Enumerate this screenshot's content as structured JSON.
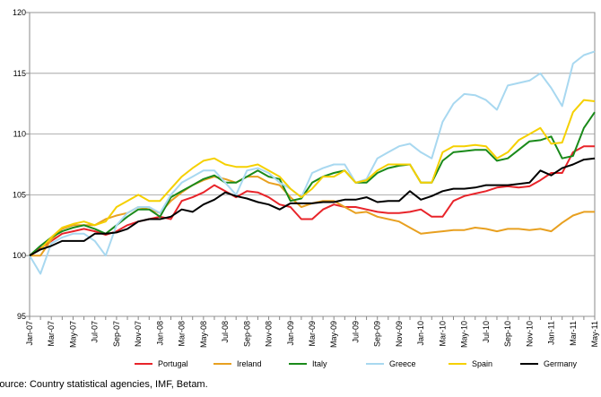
{
  "chart_data": {
    "type": "line",
    "categories": [
      "Jan-07",
      null,
      "Mar-07",
      null,
      "May-07",
      null,
      "Jul-07",
      null,
      "Sep-07",
      null,
      "Nov-07",
      null,
      "Jan-08",
      null,
      "Mar-08",
      null,
      "May-08",
      null,
      "Jul-08",
      null,
      "Sep-08",
      null,
      "Nov-08",
      null,
      "Jan-09",
      null,
      "Mar-09",
      null,
      "May-09",
      null,
      "Jul-09",
      null,
      "Sep-09",
      null,
      "Nov-09",
      null,
      "Jan-10",
      null,
      "Mar-10",
      null,
      "May-10",
      null,
      "Jul-10",
      null,
      "Sep-10",
      null,
      "Nov-10",
      null,
      "Jan-11",
      null,
      "Mar-11",
      null,
      "May-11"
    ],
    "series": [
      {
        "name": "Portugal",
        "color": "#e8242a",
        "values": [
          100,
          100.6,
          101.2,
          101.8,
          102,
          102.2,
          102,
          101.7,
          102,
          102.5,
          102.8,
          103,
          103.2,
          103,
          104.5,
          104.8,
          105.2,
          105.8,
          105.3,
          104.8,
          105.3,
          105.2,
          104.8,
          104.2,
          104,
          103,
          103,
          103.8,
          104.2,
          104,
          104,
          103.8,
          103.6,
          103.5,
          103.5,
          103.6,
          103.8,
          103.2,
          103.2,
          104.5,
          104.9,
          105.1,
          105.3,
          105.6,
          105.7,
          105.6,
          105.7,
          106.2,
          106.8,
          106.8,
          108.5,
          109,
          109
        ]
      },
      {
        "name": "Ireland",
        "color": "#e8a020",
        "values": [
          100,
          100,
          101.3,
          102.2,
          102.5,
          102.5,
          102.5,
          103,
          103.3,
          103.5,
          104,
          103.8,
          103.5,
          104.5,
          105.2,
          105.8,
          106.2,
          106.5,
          106.3,
          106,
          106.5,
          106.5,
          106,
          105.8,
          104.8,
          104,
          104.3,
          104.5,
          104.5,
          104,
          103.5,
          103.6,
          103.2,
          103,
          102.8,
          102.3,
          101.8,
          101.9,
          102,
          102.1,
          102.1,
          102.3,
          102.2,
          102,
          102.2,
          102.2,
          102.1,
          102.2,
          102,
          102.7,
          103.3,
          103.6,
          103.6
        ]
      },
      {
        "name": "Italy",
        "color": "#1a8a1a",
        "values": [
          100,
          100.8,
          101.5,
          102,
          102.3,
          102.5,
          102.2,
          101.8,
          102.5,
          103.2,
          103.8,
          103.8,
          103.2,
          104.8,
          105.3,
          105.8,
          106.3,
          106.6,
          106,
          106,
          106.5,
          107,
          106.5,
          106.3,
          104.5,
          104.7,
          106,
          106.5,
          106.8,
          107,
          106,
          106,
          106.8,
          107.2,
          107.4,
          107.5,
          106,
          106,
          107.8,
          108.5,
          108.6,
          108.7,
          108.7,
          107.8,
          108,
          108.7,
          109.4,
          109.5,
          109.8,
          108,
          108.2,
          110.5,
          111.8
        ]
      },
      {
        "name": "Greece",
        "color": "#a8d8f0",
        "values": [
          100,
          98.5,
          101,
          101.5,
          101.8,
          101.8,
          101.2,
          100,
          102.5,
          103.5,
          104,
          104,
          103.5,
          105,
          106,
          106.5,
          107,
          107,
          106,
          105,
          107,
          107.2,
          106.8,
          106,
          105.5,
          104.8,
          106.8,
          107.2,
          107.5,
          107.5,
          106,
          106.3,
          108,
          108.5,
          109,
          109.2,
          108.5,
          108,
          111,
          112.5,
          113.3,
          113.2,
          112.8,
          112,
          114,
          114.2,
          114.4,
          115,
          113.8,
          112.3,
          115.8,
          116.5,
          116.8
        ]
      },
      {
        "name": "Spain",
        "color": "#f5d000",
        "values": [
          100,
          100.5,
          101.5,
          102.3,
          102.6,
          102.8,
          102.5,
          102.8,
          104,
          104.5,
          105,
          104.5,
          104.5,
          105.5,
          106.5,
          107.2,
          107.8,
          108,
          107.5,
          107.3,
          107.3,
          107.5,
          107,
          106.5,
          105.5,
          104.8,
          105.5,
          106.5,
          106.5,
          107,
          106,
          106.2,
          107,
          107.5,
          107.5,
          107.5,
          106,
          106,
          108.5,
          109,
          109,
          109.1,
          109,
          108,
          108.5,
          109.5,
          110,
          110.5,
          109.2,
          109.3,
          111.8,
          112.8,
          112.7
        ]
      },
      {
        "name": "Germany",
        "color": "#000000",
        "values": [
          100,
          100.5,
          100.8,
          101.2,
          101.2,
          101.2,
          101.8,
          101.8,
          101.9,
          102.2,
          102.8,
          103,
          103,
          103.2,
          103.8,
          103.6,
          104.2,
          104.6,
          105.2,
          104.9,
          104.7,
          104.4,
          104.2,
          103.8,
          104.3,
          104.3,
          104.3,
          104.4,
          104.4,
          104.6,
          104.6,
          104.8,
          104.4,
          104.5,
          104.5,
          105.3,
          104.6,
          104.9,
          105.3,
          105.5,
          105.5,
          105.6,
          105.8,
          105.8,
          105.8,
          105.9,
          106,
          107,
          106.6,
          107.2,
          107.5,
          107.9,
          108
        ]
      }
    ],
    "ylim": [
      95,
      120
    ],
    "yticks": [
      95,
      100,
      105,
      110,
      115,
      120
    ],
    "grid": true,
    "legend": "bottom",
    "source": "Source: Country statistical agencies, IMF, Betam."
  }
}
